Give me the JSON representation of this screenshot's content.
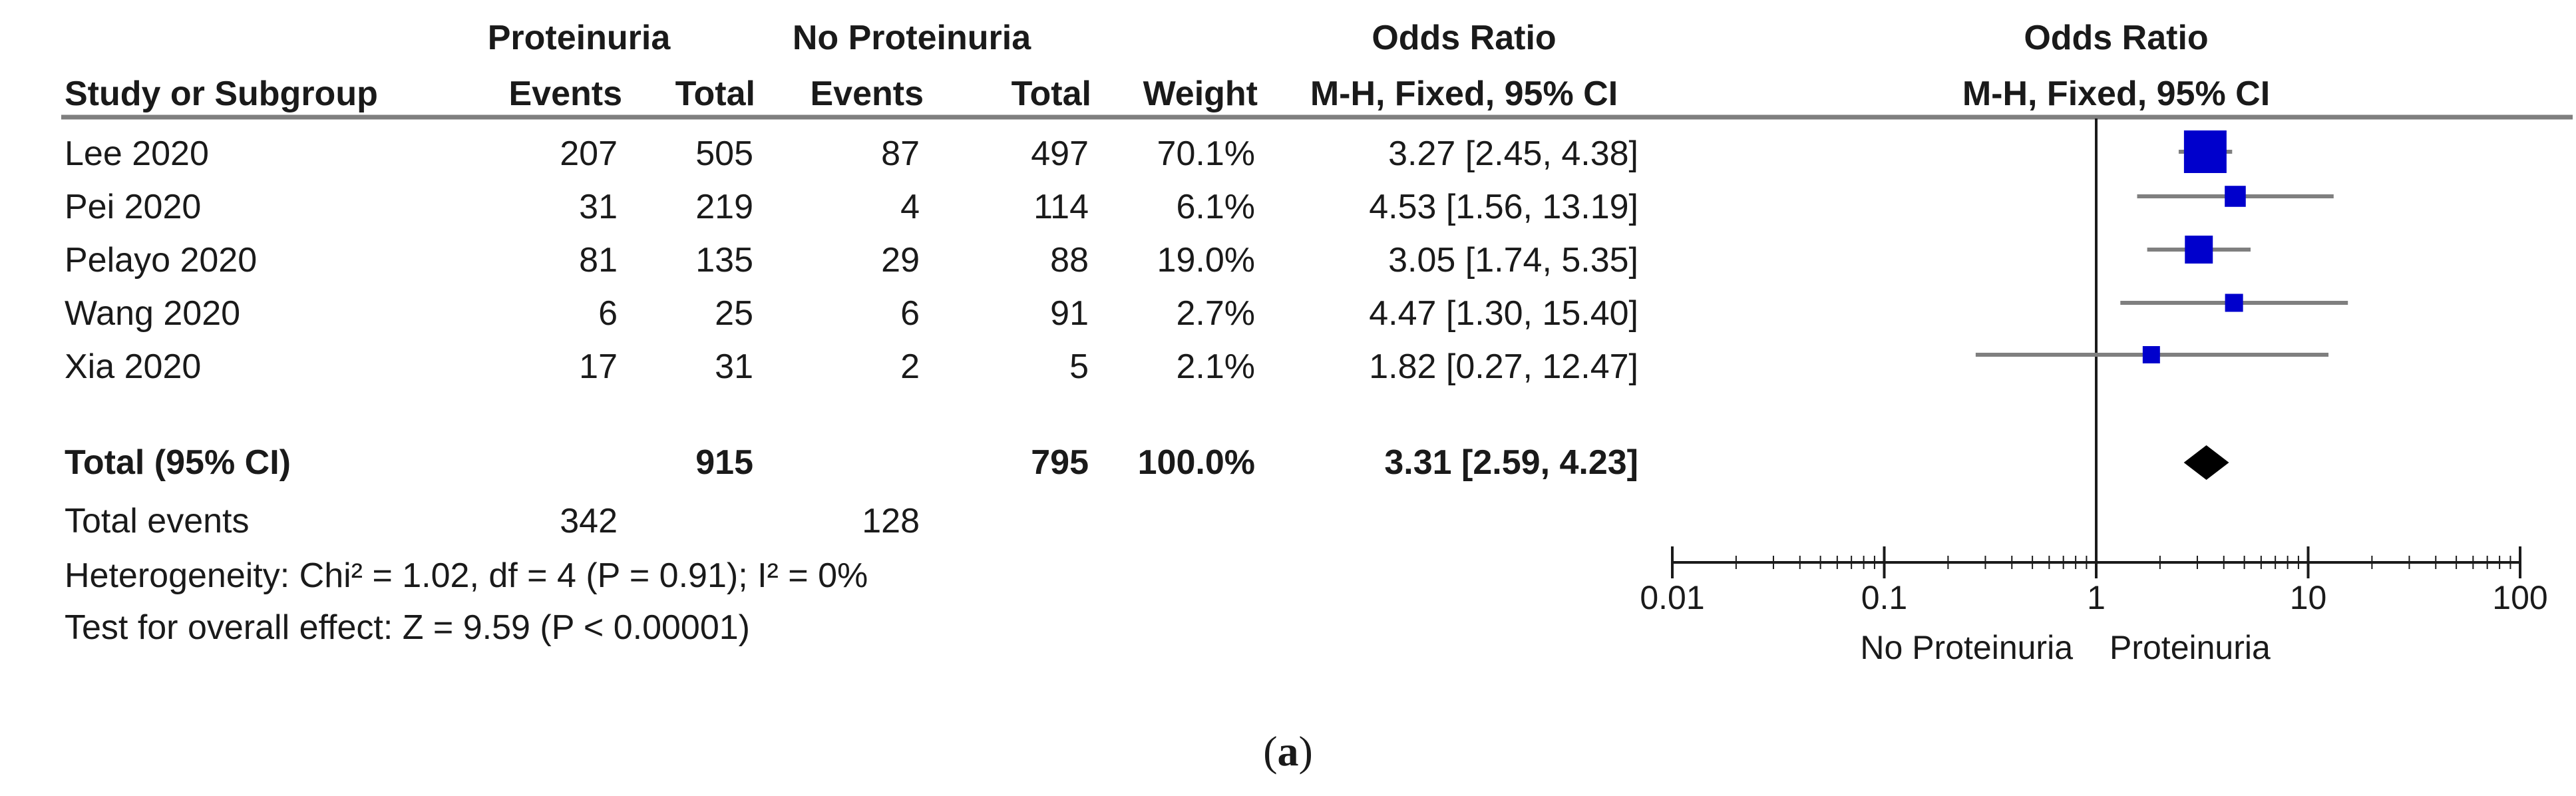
{
  "header": {
    "group1": "Proteinuria",
    "group2": "No Proteinuria",
    "or_header": "Odds Ratio",
    "plot_header": "Odds Ratio",
    "study": "Study or Subgroup",
    "events1": "Events",
    "total1": "Total",
    "events2": "Events",
    "total2": "Total",
    "weight": "Weight",
    "method": "M-H, Fixed, 95% CI",
    "plot_method": "M-H, Fixed, 95% CI"
  },
  "summary": {
    "total_label": "Total (95% CI)",
    "total1": "915",
    "total2": "795",
    "weight": "100.0%",
    "ci_text": "3.31 [2.59, 4.23]",
    "events_label": "Total events",
    "events1": "342",
    "events2": "128",
    "heterogeneity": "Heterogeneity: Chi² = 1.02, df = 4 (P = 0.91); I² = 0%",
    "overall": "Test for overall effect: Z = 9.59 (P < 0.00001)"
  },
  "axis": {
    "left_label": "No Proteinuria",
    "right_label": "Proteinuria"
  },
  "caption": {
    "open": "(",
    "letter": "a",
    "close": ")"
  },
  "chart_data": {
    "type": "forest",
    "scale": "log",
    "xlim": [
      0.01,
      100
    ],
    "ticks": [
      {
        "value": 0.01,
        "label": "0.01"
      },
      {
        "value": 0.1,
        "label": "0.1"
      },
      {
        "value": 1,
        "label": "1"
      },
      {
        "value": 10,
        "label": "10"
      },
      {
        "value": 100,
        "label": "100"
      }
    ],
    "reference_line": 1,
    "studies": [
      {
        "name": "Lee 2020",
        "events1": "207",
        "total1": "505",
        "events2": "87",
        "total2": "497",
        "weight": "70.1%",
        "weight_value": 70.1,
        "ci_text": "3.27 [2.45, 4.38]",
        "or": 3.27,
        "lower": 2.45,
        "upper": 4.38
      },
      {
        "name": "Pei 2020",
        "events1": "31",
        "total1": "219",
        "events2": "4",
        "total2": "114",
        "weight": "6.1%",
        "weight_value": 6.1,
        "ci_text": "4.53 [1.56, 13.19]",
        "or": 4.53,
        "lower": 1.56,
        "upper": 13.19
      },
      {
        "name": "Pelayo 2020",
        "events1": "81",
        "total1": "135",
        "events2": "29",
        "total2": "88",
        "weight": "19.0%",
        "weight_value": 19.0,
        "ci_text": "3.05 [1.74, 5.35]",
        "or": 3.05,
        "lower": 1.74,
        "upper": 5.35
      },
      {
        "name": "Wang 2020",
        "events1": "6",
        "total1": "25",
        "events2": "6",
        "total2": "91",
        "weight": "2.7%",
        "weight_value": 2.7,
        "ci_text": "4.47 [1.30, 15.40]",
        "or": 4.47,
        "lower": 1.3,
        "upper": 15.4
      },
      {
        "name": "Xia 2020",
        "events1": "17",
        "total1": "31",
        "events2": "2",
        "total2": "5",
        "weight": "2.1%",
        "weight_value": 2.1,
        "ci_text": "1.82 [0.27, 12.47]",
        "or": 1.82,
        "lower": 0.27,
        "upper": 12.47
      }
    ],
    "total": {
      "or": 3.31,
      "lower": 2.59,
      "upper": 4.23
    },
    "colors": {
      "box": "#0000cc",
      "ci_line": "#7f7f7f",
      "diamond": "#000000",
      "text": "#1a1a1a",
      "rule": "#7f7f7f"
    }
  }
}
